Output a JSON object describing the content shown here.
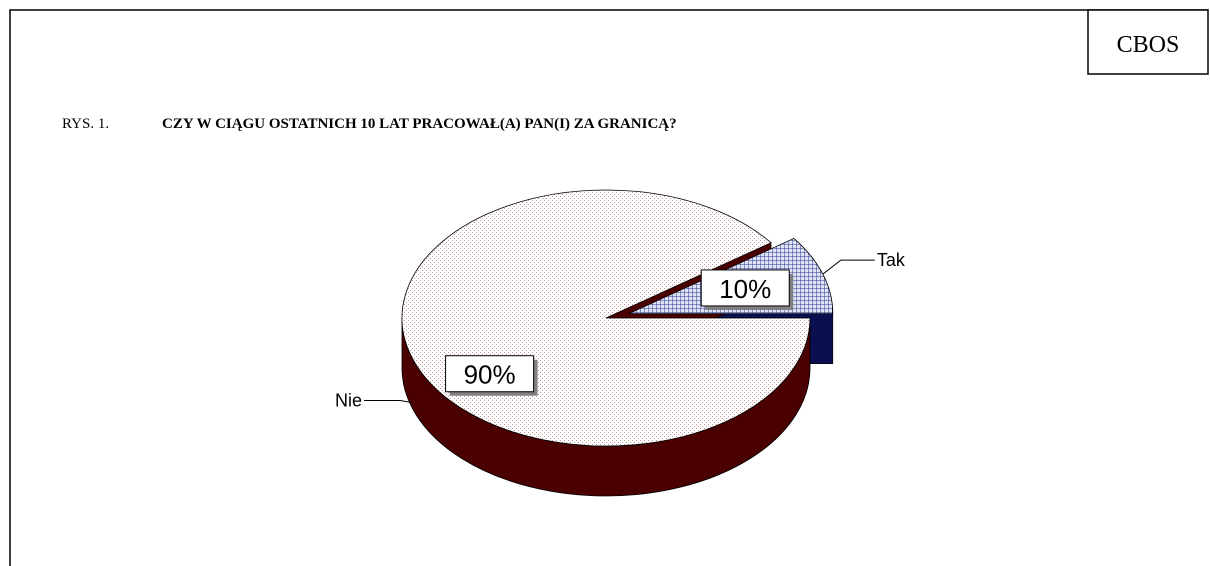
{
  "chart_data": {
    "type": "pie",
    "figure_label": "RYS. 1.",
    "title": "CZY W CIĄGU OSTATNICH 10 LAT PRACOWAŁ(A) PAN(I) ZA GRANICĄ?",
    "source": "CBOS",
    "categories": [
      "Tak",
      "Nie"
    ],
    "values": [
      10,
      90
    ],
    "value_labels": [
      "10%",
      "90%"
    ],
    "colors": [
      "#2b3a8c",
      "#e8b8b8"
    ],
    "side_colors": [
      "#0a0f50",
      "#4a0000"
    ]
  }
}
